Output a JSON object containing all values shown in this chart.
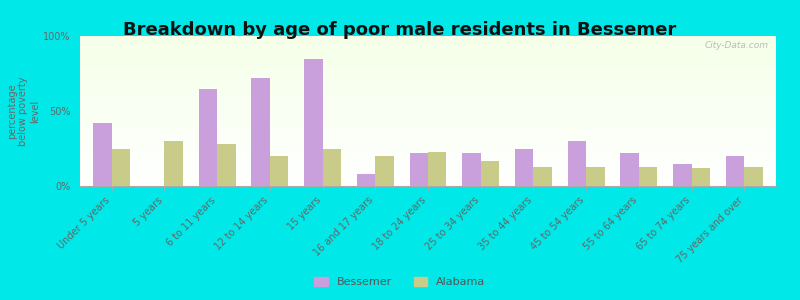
{
  "title": "Breakdown by age of poor male residents in Bessemer",
  "ylabel": "percentage\nbelow poverty\nlevel",
  "categories": [
    "Under 5 years",
    "5 years",
    "6 to 11 years",
    "12 to 14 years",
    "15 years",
    "16 and 17 years",
    "18 to 24 years",
    "25 to 34 years",
    "35 to 44 years",
    "45 to 54 years",
    "55 to 64 years",
    "65 to 74 years",
    "75 years and over"
  ],
  "bessemer_values": [
    42,
    0,
    65,
    72,
    85,
    8,
    22,
    22,
    25,
    30,
    22,
    15,
    20
  ],
  "alabama_values": [
    25,
    30,
    28,
    20,
    25,
    20,
    23,
    17,
    13,
    13,
    13,
    12,
    13
  ],
  "bessemer_color": "#c9a0dc",
  "alabama_color": "#c8cc88",
  "background_color": "#00e8e8",
  "ylim": [
    0,
    100
  ],
  "yticks": [
    0,
    50,
    100
  ],
  "ytick_labels": [
    "0%",
    "50%",
    "100%"
  ],
  "title_fontsize": 13,
  "axis_label_fontsize": 7,
  "tick_label_fontsize": 7,
  "legend_bessemer": "Bessemer",
  "legend_alabama": "Alabama",
  "watermark": "City-Data.com"
}
